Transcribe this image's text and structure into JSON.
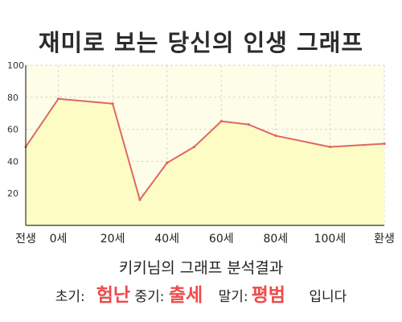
{
  "chart_data": {
    "type": "area",
    "title": "재미로 보는 당신의 인생 그래프",
    "x": [
      -12,
      0,
      20,
      30,
      40,
      50,
      60,
      70,
      80,
      100,
      120
    ],
    "values": [
      49,
      79,
      76,
      16,
      39,
      49,
      65,
      63,
      56,
      49,
      51
    ],
    "x_ticks": [
      {
        "x": -12,
        "label": "전생"
      },
      {
        "x": 0,
        "label": "0세"
      },
      {
        "x": 20,
        "label": "20세"
      },
      {
        "x": 40,
        "label": "40세"
      },
      {
        "x": 60,
        "label": "60세"
      },
      {
        "x": 80,
        "label": "80세"
      },
      {
        "x": 100,
        "label": "100세"
      },
      {
        "x": 120,
        "label": "환생"
      }
    ],
    "y_ticks": [
      20,
      40,
      60,
      80,
      100
    ],
    "xlim": [
      -12,
      120
    ],
    "ylim": [
      0,
      100
    ],
    "grid": true,
    "colors": {
      "line": "#e06666",
      "fill": "#fdfcc4",
      "plot_bg": "#fefde8",
      "grid": "#d9d9c8"
    }
  },
  "summary": {
    "heading": "키키님의 그래프 분석결과",
    "early_label": "초기:",
    "early_value": "험난",
    "mid_label": "중기:",
    "mid_value": "출세",
    "late_label": "말기:",
    "late_value": "평범",
    "ending": "입니다"
  }
}
